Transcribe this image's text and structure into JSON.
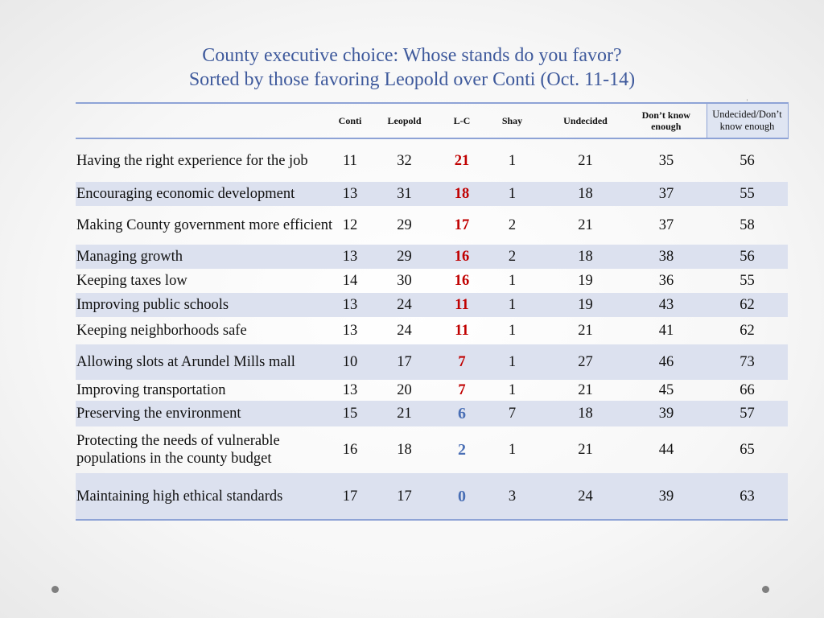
{
  "title": {
    "line1": "County executive choice: Whose stands do you favor?",
    "line2": "Sorted by those favoring Leopold over Conti (Oct. 11-14)"
  },
  "table": {
    "headers": [
      "",
      "Conti",
      "Leopold",
      "L-C",
      "Shay",
      "Undecided",
      "Don’t know enough",
      "Undecided/Don’t know enough"
    ],
    "header_mark": "'",
    "rows": [
      {
        "label": "Having the right experience for the job",
        "conti": "11",
        "leopold": "32",
        "lc": "21",
        "shay": "1",
        "undecided": "21",
        "dke": "35",
        "total": "56"
      },
      {
        "label": "Encouraging economic development",
        "conti": "13",
        "leopold": "31",
        "lc": "18",
        "shay": "1",
        "undecided": "18",
        "dke": "37",
        "total": "55"
      },
      {
        "label": "Making County government more efficient",
        "conti": "12",
        "leopold": "29",
        "lc": "17",
        "shay": "2",
        "undecided": "21",
        "dke": "37",
        "total": "58"
      },
      {
        "label": "Managing growth",
        "conti": "13",
        "leopold": "29",
        "lc": "16",
        "shay": "2",
        "undecided": "18",
        "dke": "38",
        "total": "56"
      },
      {
        "label": "Keeping taxes low",
        "conti": "14",
        "leopold": "30",
        "lc": "16",
        "shay": "1",
        "undecided": "19",
        "dke": "36",
        "total": "55"
      },
      {
        "label": "Improving public schools",
        "conti": "13",
        "leopold": "24",
        "lc": "11",
        "shay": "1",
        "undecided": "19",
        "dke": "43",
        "total": "62"
      },
      {
        "label": "Keeping neighborhoods safe",
        "conti": "13",
        "leopold": "24",
        "lc": "11",
        "shay": "1",
        "undecided": "21",
        "dke": "41",
        "total": "62"
      },
      {
        "label": "Allowing slots at Arundel Mills mall",
        "conti": "10",
        "leopold": "17",
        "lc": "7",
        "shay": "1",
        "undecided": "27",
        "dke": "46",
        "total": "73"
      },
      {
        "label": "Improving transportation",
        "conti": "13",
        "leopold": "20",
        "lc": "7",
        "shay": "1",
        "undecided": "21",
        "dke": "45",
        "total": "66"
      },
      {
        "label": "Preserving the environment",
        "conti": "15",
        "leopold": "21",
        "lc": "6",
        "shay": "7",
        "undecided": "18",
        "dke": "39",
        "total": "57"
      },
      {
        "label": "Protecting the needs of vulnerable populations in the county budget",
        "conti": "16",
        "leopold": "18",
        "lc": "2",
        "shay": "1",
        "undecided": "21",
        "dke": "44",
        "total": "65"
      },
      {
        "label": "Maintaining high ethical standards",
        "conti": "17",
        "leopold": "17",
        "lc": "0",
        "shay": "3",
        "undecided": "24",
        "dke": "39",
        "total": "63"
      }
    ]
  },
  "colors": {
    "title": "#3f5a9c",
    "lc_high": "#c00000",
    "lc_low": "#4a6fb5",
    "row_shade": "#dce1ef",
    "rule": "#8ea3d6"
  }
}
